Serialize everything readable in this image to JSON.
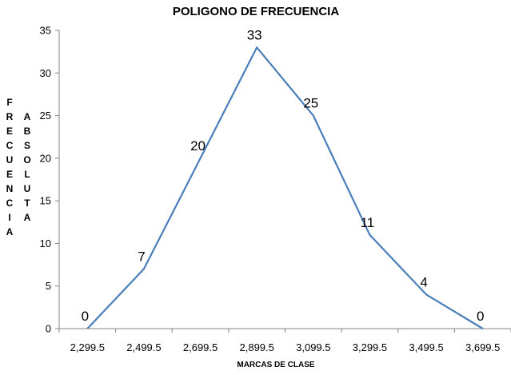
{
  "chart_data": {
    "type": "line",
    "title": "POLIGONO DE FRECUENCIA",
    "xlabel": "MARCAS DE CLASE",
    "ylabel_columns": [
      "FRECUENCIA",
      "ABSOLUTA"
    ],
    "categories": [
      "2,299.5",
      "2,499.5",
      "2,699.5",
      "2,899.5",
      "3,099.5",
      "3,299.5",
      "3,499.5",
      "3,699.5"
    ],
    "series": [
      {
        "values": [
          0,
          7,
          20,
          33,
          25,
          11,
          4,
          0
        ],
        "color": "#4a7ebb"
      }
    ],
    "data_labels": [
      "0",
      "7",
      "20",
      "33",
      "25",
      "11",
      "4",
      "0"
    ],
    "y_ticks": [
      "0",
      "5",
      "10",
      "15",
      "20",
      "25",
      "30",
      "35"
    ],
    "ylim": [
      0,
      35
    ],
    "grid": false,
    "legend": "none"
  }
}
